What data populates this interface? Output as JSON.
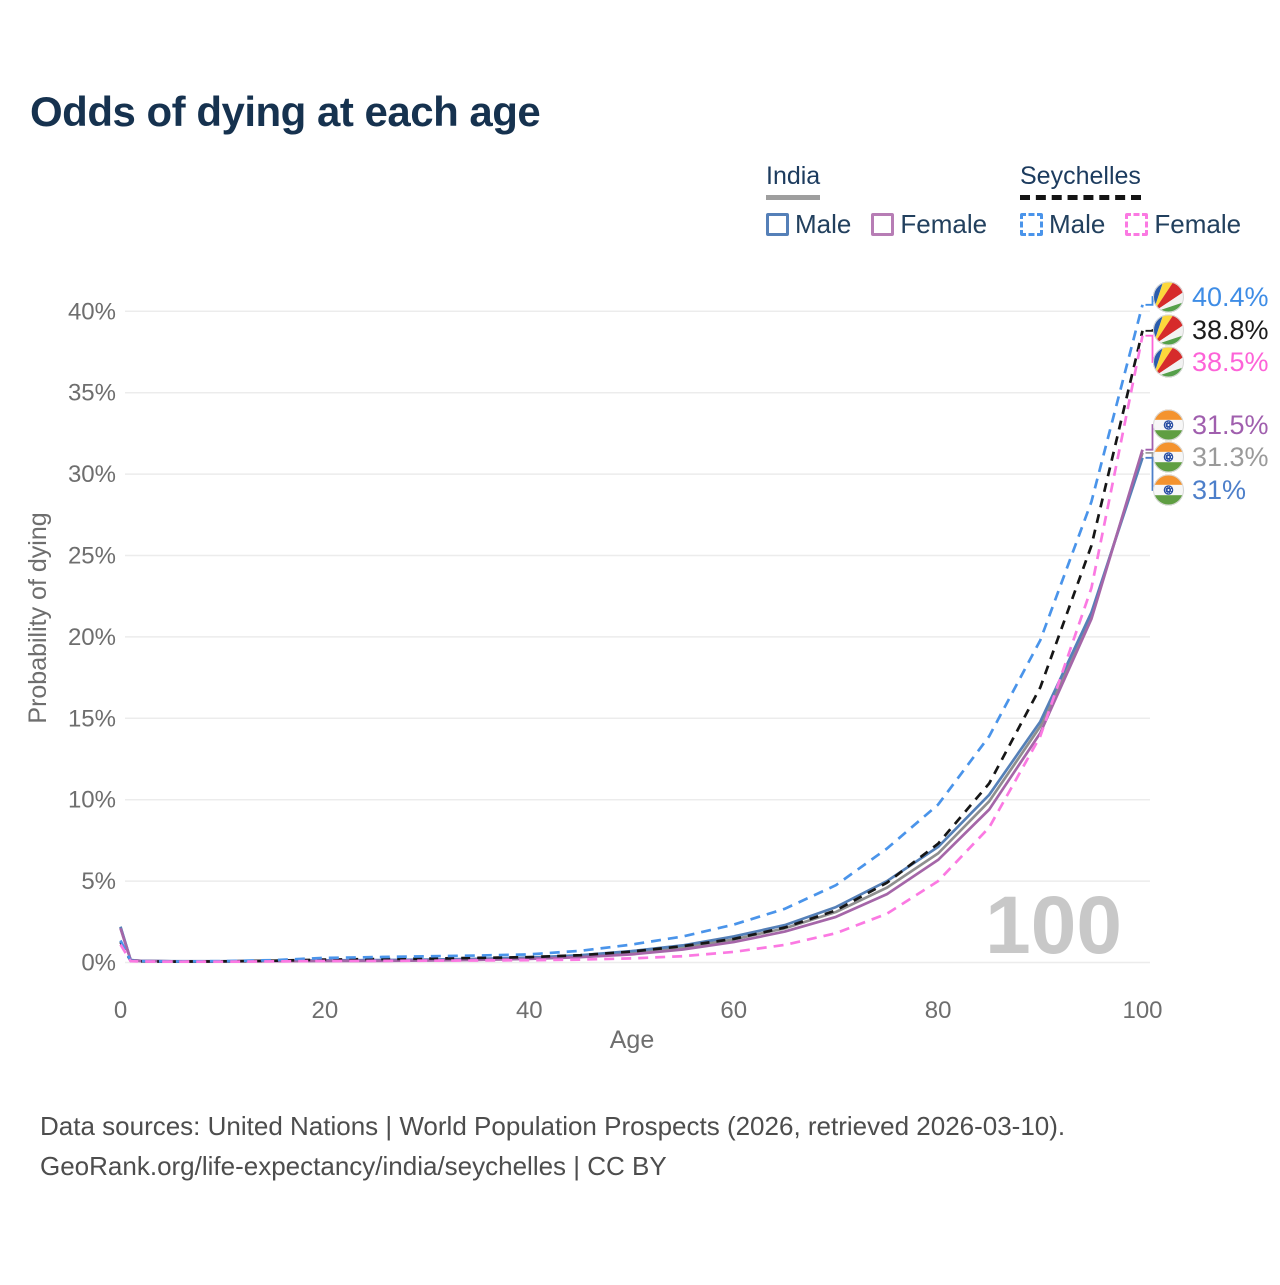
{
  "title": "Odds of dying at each age",
  "legend": {
    "groups": [
      {
        "country": "India",
        "underline_style": "solid",
        "underline_color": "#9e9e9e",
        "items": [
          {
            "label": "Male",
            "color": "#5580b8",
            "dash": false
          },
          {
            "label": "Female",
            "color": "#b77db5",
            "dash": false
          }
        ]
      },
      {
        "country": "Seychelles",
        "underline_style": "dashed",
        "underline_color": "#141414",
        "items": [
          {
            "label": "Male",
            "color": "#4a94ea",
            "dash": true
          },
          {
            "label": "Female",
            "color": "#fb79e2",
            "dash": true
          }
        ]
      }
    ]
  },
  "watermark_age": "100",
  "footer": {
    "line1": "Data sources: United Nations | World Population Prospects (2026, retrieved 2026-03-10).",
    "line2": "GeoRank.org/life-expectancy/india/seychelles | CC BY"
  },
  "chart_data": {
    "type": "line",
    "title": "Odds of dying at each age",
    "xlabel": "Age",
    "ylabel": "Probability of dying",
    "xlim": [
      0,
      100
    ],
    "ylim": [
      0,
      40
    ],
    "grid": true,
    "x_ticks": [
      {
        "value": 0,
        "label": "0"
      },
      {
        "value": 20,
        "label": "20"
      },
      {
        "value": 40,
        "label": "40"
      },
      {
        "value": 60,
        "label": "60"
      },
      {
        "value": 80,
        "label": "80"
      },
      {
        "value": 100,
        "label": "100"
      }
    ],
    "y_ticks": [
      {
        "value": 0,
        "label": "0%"
      },
      {
        "value": 5,
        "label": "5%"
      },
      {
        "value": 10,
        "label": "10%"
      },
      {
        "value": 15,
        "label": "15%"
      },
      {
        "value": 20,
        "label": "20%"
      },
      {
        "value": 25,
        "label": "25%"
      },
      {
        "value": 30,
        "label": "30%"
      },
      {
        "value": 35,
        "label": "35%"
      },
      {
        "value": 40,
        "label": "40%"
      }
    ],
    "ages": [
      0,
      1,
      2,
      5,
      10,
      15,
      20,
      25,
      30,
      35,
      40,
      45,
      50,
      55,
      60,
      65,
      70,
      75,
      80,
      85,
      90,
      95,
      100
    ],
    "series": [
      {
        "id": "india-both",
        "name": "India (both sexes)",
        "country": "India",
        "sex": "Both",
        "color": "#8f8f8f",
        "dash": false,
        "flag": "india",
        "end_label": "31.3%",
        "label_color": "#9a9a9a",
        "values": [
          2.15,
          0.15,
          0.1,
          0.075,
          0.075,
          0.09,
          0.11,
          0.13,
          0.15,
          0.2,
          0.26,
          0.39,
          0.6,
          0.92,
          1.42,
          2.1,
          3.1,
          4.6,
          6.7,
          9.9,
          14.5,
          21.3,
          31.3
        ]
      },
      {
        "id": "india-male",
        "name": "India Male",
        "country": "India",
        "sex": "Male",
        "color": "#5580b8",
        "dash": false,
        "flag": "india",
        "end_label": "31%",
        "label_color": "#4d7fca",
        "values": [
          2.2,
          0.15,
          0.1,
          0.08,
          0.08,
          0.1,
          0.13,
          0.15,
          0.18,
          0.23,
          0.3,
          0.45,
          0.7,
          1.05,
          1.6,
          2.3,
          3.4,
          5.0,
          7.1,
          10.3,
          14.8,
          21.5,
          31.0
        ]
      },
      {
        "id": "india-female",
        "name": "India Female",
        "country": "India",
        "sex": "Female",
        "color": "#a566a8",
        "dash": false,
        "flag": "india",
        "end_label": "31.5%",
        "label_color": "#a05fae",
        "values": [
          2.1,
          0.14,
          0.09,
          0.07,
          0.07,
          0.08,
          0.09,
          0.1,
          0.12,
          0.16,
          0.22,
          0.33,
          0.5,
          0.8,
          1.25,
          1.9,
          2.8,
          4.2,
          6.3,
          9.4,
          14.1,
          21.1,
          31.5
        ]
      },
      {
        "id": "seychelles-both",
        "name": "Seychelles (both sexes)",
        "country": "Seychelles",
        "sex": "Both",
        "color": "#161616",
        "dash": true,
        "flag": "seychelles",
        "end_label": "38.8%",
        "label_color": "#1c1c1c",
        "values": [
          1.25,
          0.09,
          0.07,
          0.055,
          0.065,
          0.11,
          0.18,
          0.21,
          0.24,
          0.28,
          0.33,
          0.45,
          0.67,
          1.0,
          1.45,
          2.15,
          3.2,
          4.9,
          7.3,
          11.0,
          16.9,
          25.6,
          38.8
        ]
      },
      {
        "id": "seychelles-male",
        "name": "Seychelles Male",
        "country": "Seychelles",
        "sex": "Male",
        "color": "#4a94ea",
        "dash": true,
        "flag": "seychelles",
        "end_label": "40.4%",
        "label_color": "#3f8de6",
        "values": [
          1.35,
          0.1,
          0.08,
          0.06,
          0.08,
          0.15,
          0.28,
          0.33,
          0.38,
          0.43,
          0.5,
          0.72,
          1.1,
          1.6,
          2.33,
          3.3,
          4.75,
          7.0,
          9.7,
          13.9,
          19.8,
          28.3,
          40.4
        ]
      },
      {
        "id": "seychelles-female",
        "name": "Seychelles Female",
        "country": "Seychelles",
        "sex": "Female",
        "color": "#fb79e2",
        "dash": true,
        "flag": "seychelles",
        "end_label": "38.5%",
        "label_color": "#fd63d8",
        "values": [
          1.1,
          0.08,
          0.06,
          0.05,
          0.05,
          0.07,
          0.09,
          0.1,
          0.11,
          0.12,
          0.14,
          0.18,
          0.25,
          0.39,
          0.65,
          1.08,
          1.8,
          3.0,
          5.0,
          8.3,
          13.9,
          23.0,
          38.5
        ]
      }
    ]
  }
}
